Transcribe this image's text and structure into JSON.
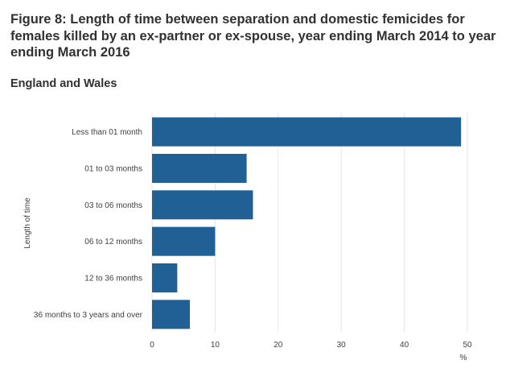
{
  "chart_data": {
    "type": "bar",
    "orientation": "horizontal",
    "title": "Figure 8: Length of time between separation and domestic femicides for females killed by an ex-partner or ex-spouse, year ending March 2014 to year ending March 2016",
    "subtitle": "England and Wales",
    "ylabel": "Length of time",
    "xlabel": "%",
    "categories": [
      "Less than 01 month",
      "01 to 03 months",
      "03 to 06 months",
      "06 to 12 months",
      "12 to 36 months",
      "36 months to 3 years and over"
    ],
    "values": [
      49,
      15,
      16,
      10,
      4,
      6
    ],
    "xlim": [
      0,
      50
    ],
    "xticks": [
      0,
      10,
      20,
      30,
      40,
      50
    ],
    "grid": true,
    "legend": "none",
    "bar_color": "#206095"
  }
}
